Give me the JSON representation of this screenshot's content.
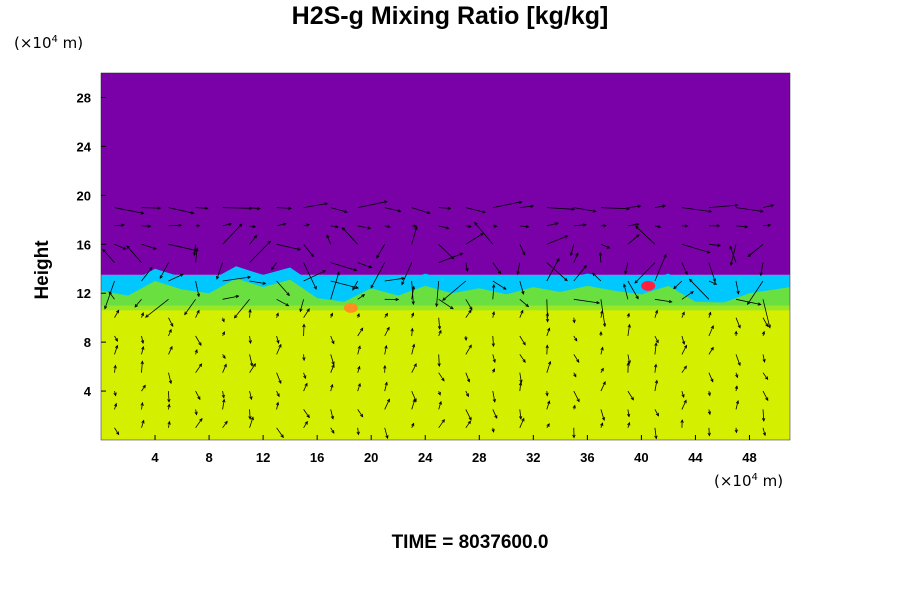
{
  "chart_data": {
    "type": "heatmap",
    "title": "H2S-g Mixing Ratio [kg/kg]",
    "ylabel": "Height",
    "xlabel": "",
    "x_unit": "(×10",
    "x_unit_exp": "4",
    "x_unit_suffix": " m)",
    "y_unit": "(×10",
    "y_unit_exp": "4",
    "y_unit_suffix": " m)",
    "xlim": [
      0,
      51
    ],
    "ylim": [
      0,
      30
    ],
    "x_ticks": [
      4,
      8,
      12,
      16,
      20,
      24,
      28,
      32,
      36,
      40,
      44,
      48
    ],
    "y_ticks": [
      4,
      8,
      12,
      16,
      20,
      24,
      28
    ],
    "x_tick_labels": [
      "4",
      "8",
      "12",
      "16",
      "20",
      "24",
      "28",
      "32",
      "36",
      "40",
      "44",
      "48"
    ],
    "y_tick_labels": [
      "4",
      "8",
      "12",
      "16",
      "20",
      "24",
      "28"
    ],
    "layers": [
      {
        "name": "lower",
        "y_range": [
          0,
          11
        ],
        "color": "#d4f000"
      },
      {
        "name": "transition",
        "y_range": [
          11,
          12.2
        ],
        "color": "#6ae040"
      },
      {
        "name": "mixing-front",
        "y_range": [
          12.2,
          13.5
        ],
        "color": "#00c8ff"
      },
      {
        "name": "upper",
        "y_range": [
          13.5,
          30
        ],
        "color": "#7a00a8"
      }
    ],
    "front_heights": [
      [
        0,
        13.2
      ],
      [
        2,
        12.8
      ],
      [
        4,
        14.0
      ],
      [
        6,
        13.3
      ],
      [
        8,
        13.0
      ],
      [
        10,
        14.2
      ],
      [
        12,
        13.5
      ],
      [
        14,
        14.1
      ],
      [
        16,
        12.6
      ],
      [
        18,
        12.3
      ],
      [
        20,
        13.4
      ],
      [
        22,
        12.8
      ],
      [
        24,
        13.6
      ],
      [
        26,
        13.0
      ],
      [
        28,
        13.4
      ],
      [
        30,
        12.9
      ],
      [
        32,
        13.5
      ],
      [
        34,
        13.1
      ],
      [
        36,
        13.6
      ],
      [
        38,
        13.2
      ],
      [
        40,
        12.9
      ],
      [
        42,
        13.6
      ],
      [
        44,
        12.3
      ],
      [
        46,
        12.2
      ],
      [
        48,
        13.0
      ],
      [
        51,
        13.5
      ]
    ],
    "hotspots": [
      {
        "x": 40.5,
        "y": 12.6,
        "color": "#ff2040"
      },
      {
        "x": 18.5,
        "y": 10.8,
        "color": "#ff9020"
      }
    ],
    "colors": {
      "upper": "#7a00a8",
      "front": "#00c8ff",
      "transition": "#6ae040",
      "lower": "#d4f000",
      "hotspot": "#ff2040",
      "vector": "#000000"
    }
  },
  "footer": {
    "time_label": "TIME = 8037600.0"
  }
}
